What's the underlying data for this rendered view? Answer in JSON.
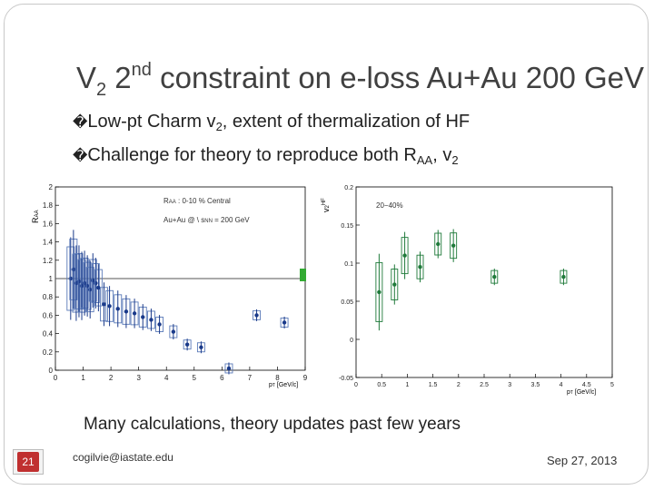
{
  "slide": {
    "title_main": "V",
    "title_sub": "2",
    "title_num": " 2",
    "title_sup": "nd",
    "title_rest": " constraint on e-loss Au+Au 200 GeV",
    "bullet_mark": "\u0000",
    "bullet1_text": "Low-pt Charm v",
    "bullet1_sub": "2",
    "bullet1_rest": ", extent of thermalization of HF",
    "bullet2_text": "Challenge for theory to reproduce both R",
    "bullet2_sub": "AA",
    "bullet2_rest": ", v",
    "bullet2_sub2": "2",
    "caption": "Many calculations, theory updates past few years",
    "page_number": "21",
    "email": "cogilvie@iastate.edu",
    "date": "Sep 27, 2013",
    "colors": {
      "page_badge": "#c03030",
      "raa_marker": "#1a3a8a",
      "v2_marker": "#1f7a3a",
      "band": "#33aa33"
    }
  },
  "chart_data": [
    {
      "type": "scatter",
      "ylabel": "R_AA",
      "xlabel": "p_T [GeV/c]",
      "legend": [
        "R_AA : 0-10 % Central",
        "Au+Au @ √s_NN = 200 GeV"
      ],
      "xlim": [
        0,
        9
      ],
      "ylim": [
        0,
        2
      ],
      "xticks": [
        "0",
        "1",
        "2",
        "3",
        "4",
        "5",
        "6",
        "7",
        "8",
        "9"
      ],
      "yticks": [
        "0",
        "0.2",
        "0.4",
        "0.6",
        "0.8",
        "1",
        "1.2",
        "1.4",
        "1.6",
        "1.8",
        "2"
      ],
      "reference_line": 1,
      "x": [
        0.55,
        0.65,
        0.75,
        0.85,
        0.95,
        1.05,
        1.15,
        1.25,
        1.35,
        1.45,
        1.55,
        1.75,
        1.95,
        2.25,
        2.55,
        2.85,
        3.15,
        3.45,
        3.75,
        4.25,
        4.75,
        5.25,
        6.25,
        7.25,
        8.25
      ],
      "y": [
        1.0,
        1.1,
        0.95,
        0.97,
        0.92,
        0.95,
        0.92,
        0.88,
        0.98,
        0.95,
        0.9,
        0.72,
        0.7,
        0.67,
        0.64,
        0.62,
        0.58,
        0.55,
        0.5,
        0.42,
        0.28,
        0.25,
        0.02,
        0.6,
        0.52
      ]
    },
    {
      "type": "scatter",
      "ylabel": "v2^HF",
      "xlabel": "p_T [GeV/c]",
      "legend": [
        "20-40%"
      ],
      "xlim": [
        0,
        5
      ],
      "ylim": [
        -0.05,
        0.2
      ],
      "xticks": [
        "0",
        "0.5",
        "1",
        "1.5",
        "2",
        "2.5",
        "3",
        "3.5",
        "4",
        "4.5",
        "5"
      ],
      "yticks": [
        "-0.05",
        "0",
        "0.05",
        "0.1",
        "0.15",
        "0.2"
      ],
      "x": [
        0.45,
        0.75,
        0.95,
        1.25,
        1.6,
        1.9,
        2.7,
        4.05
      ],
      "y": [
        0.062,
        0.072,
        0.11,
        0.095,
        0.125,
        0.123,
        0.082,
        0.082
      ]
    }
  ]
}
